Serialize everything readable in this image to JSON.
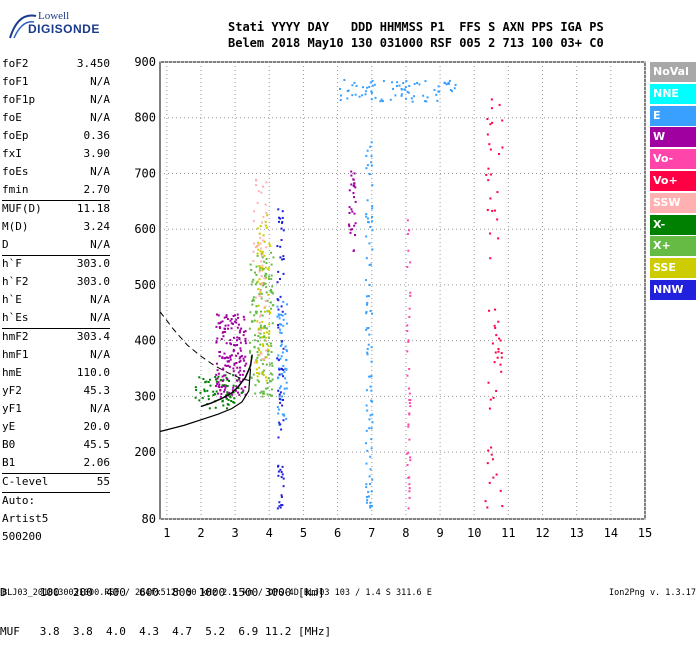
{
  "logo": {
    "line1": "Lowell",
    "line2": "DIGISONDE"
  },
  "header": {
    "line1": "Stati YYYY DAY   DDD HHMMSS P1  FFS S AXN PPS IGA PS",
    "line2": "Belem 2018 May10 130 031000 RSF 005 2 713 100 03+ C0"
  },
  "params": [
    {
      "name": "foF2",
      "value": "3.450"
    },
    {
      "name": "foF1",
      "value": "N/A"
    },
    {
      "name": "foF1p",
      "value": "N/A"
    },
    {
      "name": "foE",
      "value": "N/A"
    },
    {
      "name": "foEp",
      "value": "0.36"
    },
    {
      "name": "fxI",
      "value": "3.90"
    },
    {
      "name": "foEs",
      "value": "N/A"
    },
    {
      "name": "fmin",
      "value": "2.70",
      "sep": true
    },
    {
      "name": "MUF(D)",
      "value": "11.18"
    },
    {
      "name": "M(D)",
      "value": "3.24"
    },
    {
      "name": "D",
      "value": "N/A",
      "sep": true
    },
    {
      "name": "h`F",
      "value": "303.0"
    },
    {
      "name": "h`F2",
      "value": "303.0"
    },
    {
      "name": "h`E",
      "value": "N/A"
    },
    {
      "name": "h`Es",
      "value": "N/A",
      "sep": true
    },
    {
      "name": "hmF2",
      "value": "303.4"
    },
    {
      "name": "hmF1",
      "value": "N/A"
    },
    {
      "name": "hmE",
      "value": "110.0"
    },
    {
      "name": "yF2",
      "value": "45.3"
    },
    {
      "name": "yF1",
      "value": "N/A"
    },
    {
      "name": "yE",
      "value": "20.0"
    },
    {
      "name": "B0",
      "value": "45.5"
    },
    {
      "name": "B1",
      "value": "2.06",
      "sep": true
    },
    {
      "name": "C-level",
      "value": "55",
      "sep": true
    }
  ],
  "auto": {
    "line1": "Auto:",
    "line2": "Artist5",
    "line3": "500200"
  },
  "bottom": {
    "d_line": "D     100  200  400  600  800 1000 1500 3000 [km]",
    "muf_line": "MUF   3.8  3.8  4.0  4.3  4.7  5.2  6.9 11.2 [MHz]"
  },
  "footer": {
    "left": "BLJ03_2018130031000.RSF / 284fx512h 50 kHz 2.5 km / DPS-4D BLJ03 103 / 1.4 S 311.6 E",
    "right": "Ion2Png v. 1.3.17"
  },
  "legend": [
    {
      "label": "NoVal",
      "color": "#a8a8a8"
    },
    {
      "label": "NNE",
      "color": "#00ffff"
    },
    {
      "label": "E",
      "color": "#3aa0ff"
    },
    {
      "label": "W",
      "color": "#a000a0"
    },
    {
      "label": "Vo-",
      "color": "#ff44aa"
    },
    {
      "label": "Vo+",
      "color": "#ff0044"
    },
    {
      "label": "SSW",
      "color": "#ffb0b0"
    },
    {
      "label": "X-",
      "color": "#008000"
    },
    {
      "label": "X+",
      "color": "#66bb44"
    },
    {
      "label": "SSE",
      "color": "#cccc00"
    },
    {
      "label": "NNW",
      "color": "#2020dd"
    }
  ],
  "chart_data": {
    "type": "scatter",
    "title": "",
    "xlabel": "",
    "ylabel": "",
    "xlim": [
      0.8,
      15
    ],
    "ylim": [
      80,
      900
    ],
    "x_ticks": [
      1,
      2,
      3,
      4,
      5,
      6,
      7,
      8,
      9,
      10,
      11,
      12,
      13,
      14,
      15
    ],
    "y_ticks": [
      80,
      200,
      300,
      400,
      500,
      600,
      700,
      800,
      900
    ],
    "grid": true,
    "ionogram_trace": {
      "x": [
        2.0,
        2.3,
        2.6,
        2.9,
        3.1,
        3.3,
        3.45,
        3.5
      ],
      "y": [
        282,
        288,
        296,
        306,
        318,
        334,
        355,
        375
      ]
    },
    "layer_profile_solid": {
      "x": [
        0.8,
        1.5,
        2.0,
        2.5,
        2.9,
        3.2,
        3.4,
        3.45
      ],
      "y": [
        237,
        248,
        258,
        268,
        278,
        290,
        310,
        350
      ]
    },
    "layer_profile_dashed": {
      "x": [
        0.8,
        1.2,
        1.6,
        2.0,
        2.4,
        2.8,
        3.1,
        3.3,
        3.45
      ],
      "y": [
        452,
        420,
        392,
        372,
        355,
        342,
        334,
        330,
        328
      ]
    },
    "echo_clusters": [
      {
        "x_range": [
          1.8,
          3.2
        ],
        "y_range": [
          280,
          340
        ],
        "color": "#008000",
        "count": 70
      },
      {
        "x_range": [
          2.4,
          3.3
        ],
        "y_range": [
          300,
          450
        ],
        "color": "#a000a0",
        "count": 160
      },
      {
        "x_range": [
          3.4,
          4.1
        ],
        "y_range": [
          300,
          560
        ],
        "color": "#66bb44",
        "count": 150
      },
      {
        "x_range": [
          3.6,
          4.0
        ],
        "y_range": [
          330,
          640
        ],
        "color": "#cccc00",
        "count": 70
      },
      {
        "x_range": [
          3.5,
          3.9
        ],
        "y_range": [
          350,
          700
        ],
        "color": "#ffb0b0",
        "count": 50
      },
      {
        "x_range": [
          4.2,
          4.5
        ],
        "y_range": [
          250,
          480
        ],
        "color": "#3aa0ff",
        "count": 60
      },
      {
        "x_range": [
          6.8,
          7.0
        ],
        "y_range": [
          100,
          770
        ],
        "color": "#3aa0ff",
        "count": 90
      },
      {
        "x_range": [
          8.0,
          8.1
        ],
        "y_range": [
          100,
          620
        ],
        "color": "#ff44aa",
        "count": 40
      },
      {
        "x_range": [
          6.3,
          6.5
        ],
        "y_range": [
          560,
          720
        ],
        "color": "#a000a0",
        "count": 30
      },
      {
        "x_range": [
          10.3,
          10.8
        ],
        "y_range": [
          100,
          900
        ],
        "color": "#ff0044",
        "count": 60
      },
      {
        "x_range": [
          4.2,
          4.4
        ],
        "y_range": [
          100,
          640
        ],
        "color": "#2020dd",
        "count": 70
      },
      {
        "x_range": [
          6.0,
          9.5
        ],
        "y_range": [
          830,
          870
        ],
        "color": "#3aa0ff",
        "count": 80
      }
    ]
  }
}
